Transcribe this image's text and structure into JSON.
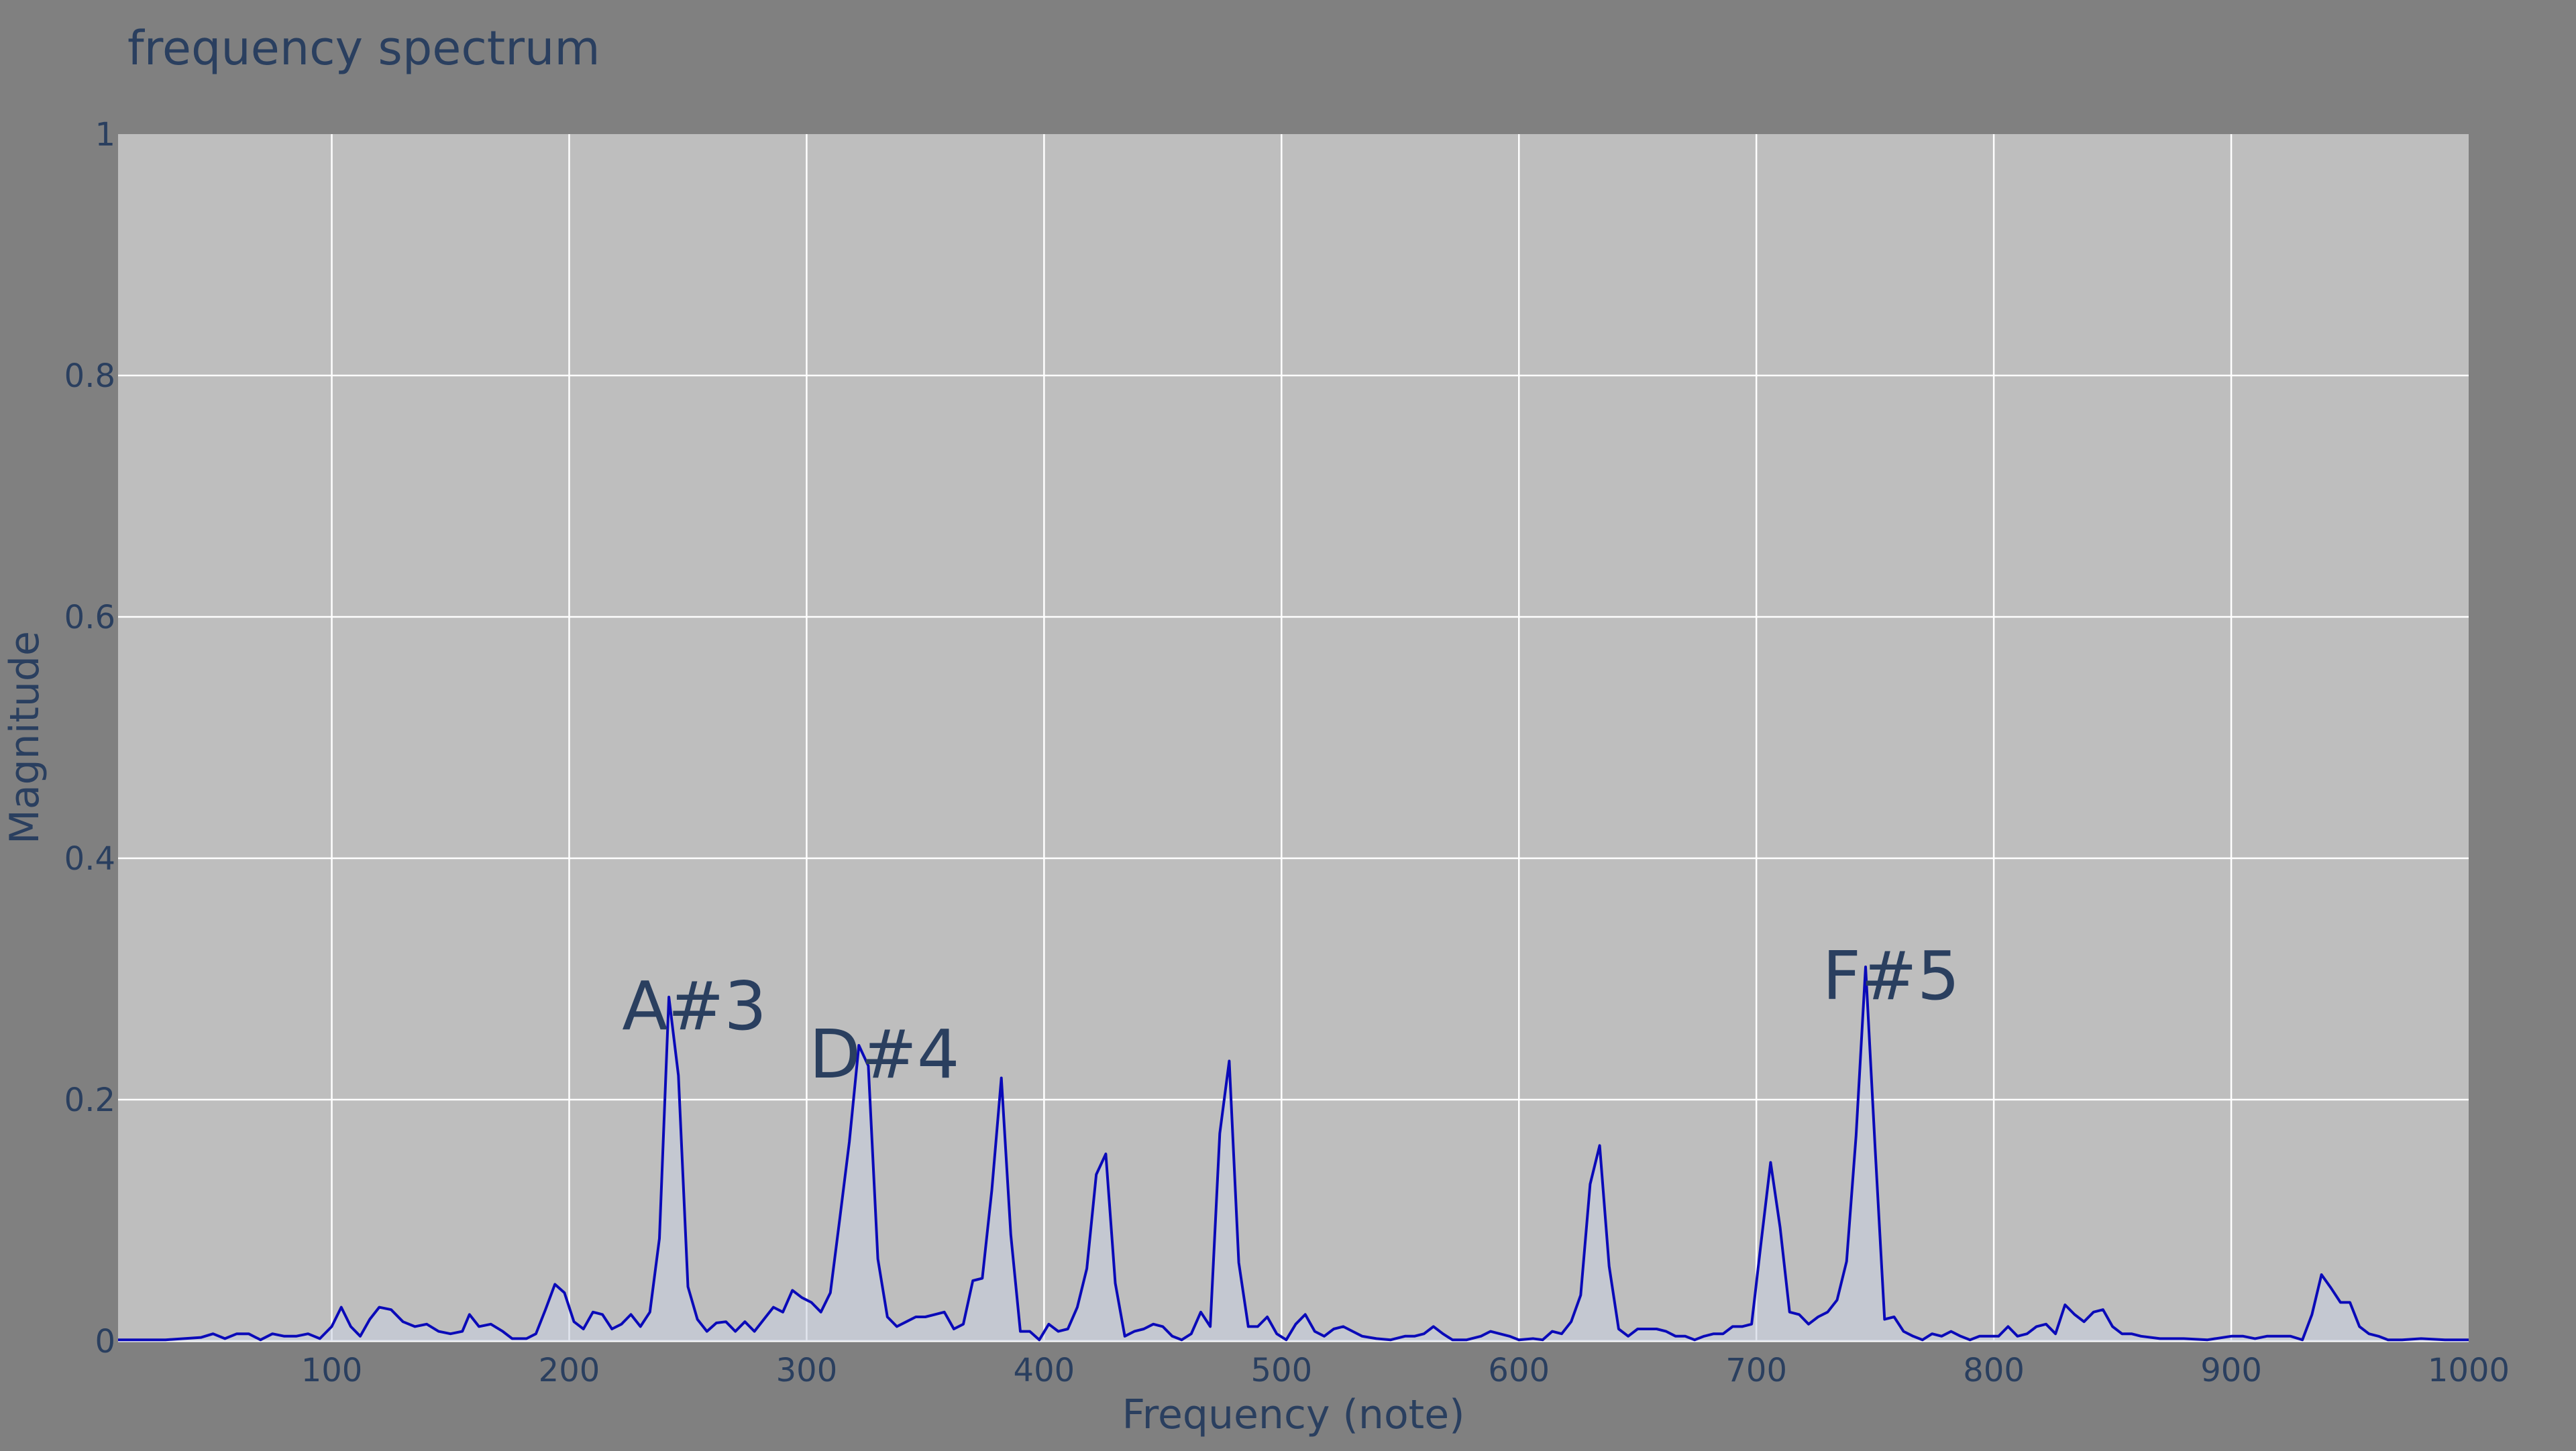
{
  "chart_data": {
    "type": "line",
    "title": "frequency spectrum",
    "xlabel": "Frequency (note)",
    "ylabel": "Magnitude",
    "xlim": [
      10,
      1000
    ],
    "ylim": [
      0,
      1
    ],
    "x_ticks": [
      100,
      200,
      300,
      400,
      500,
      600,
      700,
      800,
      900,
      1000
    ],
    "y_ticks": [
      0,
      0.2,
      0.4,
      0.6,
      0.8,
      1
    ],
    "y_tick_labels": [
      "0",
      "0.2",
      "0.4",
      "0.6",
      "0.8",
      "1"
    ],
    "grid": true,
    "fill": "tozeroy",
    "series": [
      {
        "color": "#0a0ab8",
        "fill_color": "#c8cfe0",
        "points": [
          [
            10,
            0.001
          ],
          [
            30,
            0.001
          ],
          [
            45,
            0.003
          ],
          [
            50,
            0.006
          ],
          [
            55,
            0.002
          ],
          [
            60,
            0.006
          ],
          [
            65,
            0.006
          ],
          [
            70,
            0.001
          ],
          [
            75,
            0.006
          ],
          [
            80,
            0.004
          ],
          [
            85,
            0.004
          ],
          [
            90,
            0.006
          ],
          [
            95,
            0.002
          ],
          [
            100,
            0.012
          ],
          [
            104,
            0.028
          ],
          [
            108,
            0.012
          ],
          [
            112,
            0.004
          ],
          [
            116,
            0.018
          ],
          [
            120,
            0.028
          ],
          [
            125,
            0.026
          ],
          [
            130,
            0.016
          ],
          [
            135,
            0.012
          ],
          [
            140,
            0.014
          ],
          [
            145,
            0.008
          ],
          [
            150,
            0.006
          ],
          [
            155,
            0.008
          ],
          [
            158,
            0.022
          ],
          [
            162,
            0.012
          ],
          [
            167,
            0.014
          ],
          [
            172,
            0.008
          ],
          [
            176,
            0.002
          ],
          [
            182,
            0.002
          ],
          [
            186,
            0.006
          ],
          [
            190,
            0.026
          ],
          [
            194,
            0.047
          ],
          [
            198,
            0.04
          ],
          [
            202,
            0.016
          ],
          [
            206,
            0.01
          ],
          [
            210,
            0.024
          ],
          [
            214,
            0.022
          ],
          [
            218,
            0.01
          ],
          [
            222,
            0.014
          ],
          [
            226,
            0.022
          ],
          [
            230,
            0.012
          ],
          [
            234,
            0.024
          ],
          [
            238,
            0.085
          ],
          [
            242,
            0.285
          ],
          [
            246,
            0.22
          ],
          [
            250,
            0.045
          ],
          [
            254,
            0.018
          ],
          [
            258,
            0.008
          ],
          [
            262,
            0.015
          ],
          [
            266,
            0.016
          ],
          [
            270,
            0.008
          ],
          [
            274,
            0.016
          ],
          [
            278,
            0.008
          ],
          [
            282,
            0.018
          ],
          [
            286,
            0.028
          ],
          [
            290,
            0.024
          ],
          [
            294,
            0.042
          ],
          [
            298,
            0.036
          ],
          [
            302,
            0.032
          ],
          [
            306,
            0.024
          ],
          [
            310,
            0.04
          ],
          [
            314,
            0.102
          ],
          [
            318,
            0.165
          ],
          [
            322,
            0.245
          ],
          [
            326,
            0.228
          ],
          [
            330,
            0.068
          ],
          [
            334,
            0.02
          ],
          [
            338,
            0.012
          ],
          [
            342,
            0.016
          ],
          [
            346,
            0.02
          ],
          [
            350,
            0.02
          ],
          [
            354,
            0.022
          ],
          [
            358,
            0.024
          ],
          [
            362,
            0.01
          ],
          [
            366,
            0.014
          ],
          [
            370,
            0.05
          ],
          [
            374,
            0.052
          ],
          [
            378,
            0.125
          ],
          [
            382,
            0.218
          ],
          [
            386,
            0.088
          ],
          [
            390,
            0.008
          ],
          [
            394,
            0.008
          ],
          [
            398,
            0.001
          ],
          [
            402,
            0.014
          ],
          [
            406,
            0.008
          ],
          [
            410,
            0.01
          ],
          [
            414,
            0.028
          ],
          [
            418,
            0.06
          ],
          [
            422,
            0.138
          ],
          [
            426,
            0.155
          ],
          [
            430,
            0.048
          ],
          [
            434,
            0.004
          ],
          [
            438,
            0.008
          ],
          [
            442,
            0.01
          ],
          [
            446,
            0.014
          ],
          [
            450,
            0.012
          ],
          [
            454,
            0.004
          ],
          [
            458,
            0.001
          ],
          [
            462,
            0.006
          ],
          [
            466,
            0.024
          ],
          [
            470,
            0.012
          ],
          [
            474,
            0.172
          ],
          [
            478,
            0.232
          ],
          [
            482,
            0.065
          ],
          [
            486,
            0.012
          ],
          [
            490,
            0.012
          ],
          [
            494,
            0.02
          ],
          [
            498,
            0.006
          ],
          [
            502,
            0.001
          ],
          [
            506,
            0.014
          ],
          [
            510,
            0.022
          ],
          [
            514,
            0.008
          ],
          [
            518,
            0.004
          ],
          [
            522,
            0.01
          ],
          [
            526,
            0.012
          ],
          [
            530,
            0.008
          ],
          [
            534,
            0.004
          ],
          [
            540,
            0.002
          ],
          [
            546,
            0.001
          ],
          [
            552,
            0.004
          ],
          [
            556,
            0.004
          ],
          [
            560,
            0.006
          ],
          [
            564,
            0.012
          ],
          [
            568,
            0.006
          ],
          [
            572,
            0.001
          ],
          [
            578,
            0.001
          ],
          [
            584,
            0.004
          ],
          [
            588,
            0.008
          ],
          [
            592,
            0.006
          ],
          [
            596,
            0.004
          ],
          [
            600,
            0.001
          ],
          [
            606,
            0.002
          ],
          [
            610,
            0.001
          ],
          [
            614,
            0.008
          ],
          [
            618,
            0.006
          ],
          [
            622,
            0.016
          ],
          [
            626,
            0.038
          ],
          [
            630,
            0.13
          ],
          [
            634,
            0.162
          ],
          [
            638,
            0.062
          ],
          [
            642,
            0.01
          ],
          [
            646,
            0.004
          ],
          [
            650,
            0.01
          ],
          [
            654,
            0.01
          ],
          [
            658,
            0.01
          ],
          [
            662,
            0.008
          ],
          [
            666,
            0.004
          ],
          [
            670,
            0.004
          ],
          [
            674,
            0.001
          ],
          [
            678,
            0.004
          ],
          [
            682,
            0.006
          ],
          [
            686,
            0.006
          ],
          [
            690,
            0.012
          ],
          [
            694,
            0.012
          ],
          [
            698,
            0.014
          ],
          [
            702,
            0.082
          ],
          [
            706,
            0.148
          ],
          [
            710,
            0.094
          ],
          [
            714,
            0.024
          ],
          [
            718,
            0.022
          ],
          [
            722,
            0.014
          ],
          [
            726,
            0.02
          ],
          [
            730,
            0.024
          ],
          [
            734,
            0.034
          ],
          [
            738,
            0.066
          ],
          [
            742,
            0.17
          ],
          [
            746,
            0.31
          ],
          [
            750,
            0.16
          ],
          [
            754,
            0.018
          ],
          [
            758,
            0.02
          ],
          [
            762,
            0.008
          ],
          [
            766,
            0.004
          ],
          [
            770,
            0.001
          ],
          [
            774,
            0.006
          ],
          [
            778,
            0.004
          ],
          [
            782,
            0.008
          ],
          [
            786,
            0.004
          ],
          [
            790,
            0.001
          ],
          [
            794,
            0.004
          ],
          [
            798,
            0.004
          ],
          [
            802,
            0.004
          ],
          [
            806,
            0.012
          ],
          [
            810,
            0.004
          ],
          [
            814,
            0.006
          ],
          [
            818,
            0.012
          ],
          [
            822,
            0.014
          ],
          [
            826,
            0.006
          ],
          [
            830,
            0.03
          ],
          [
            834,
            0.022
          ],
          [
            838,
            0.016
          ],
          [
            842,
            0.024
          ],
          [
            846,
            0.026
          ],
          [
            850,
            0.012
          ],
          [
            854,
            0.006
          ],
          [
            858,
            0.006
          ],
          [
            862,
            0.004
          ],
          [
            870,
            0.002
          ],
          [
            880,
            0.002
          ],
          [
            890,
            0.001
          ],
          [
            900,
            0.004
          ],
          [
            905,
            0.004
          ],
          [
            910,
            0.002
          ],
          [
            915,
            0.004
          ],
          [
            920,
            0.004
          ],
          [
            925,
            0.004
          ],
          [
            930,
            0.001
          ],
          [
            934,
            0.022
          ],
          [
            938,
            0.055
          ],
          [
            942,
            0.044
          ],
          [
            946,
            0.032
          ],
          [
            950,
            0.032
          ],
          [
            954,
            0.012
          ],
          [
            958,
            0.006
          ],
          [
            962,
            0.004
          ],
          [
            966,
            0.001
          ],
          [
            972,
            0.001
          ],
          [
            980,
            0.002
          ],
          [
            990,
            0.001
          ],
          [
            1000,
            0.001
          ]
        ]
      }
    ],
    "annotations": [
      {
        "text": "A#3",
        "x": 242,
        "y": 0.285
      },
      {
        "text": "D#4",
        "x": 322,
        "y": 0.245
      },
      {
        "text": "F#5",
        "x": 746,
        "y": 0.31
      }
    ]
  }
}
